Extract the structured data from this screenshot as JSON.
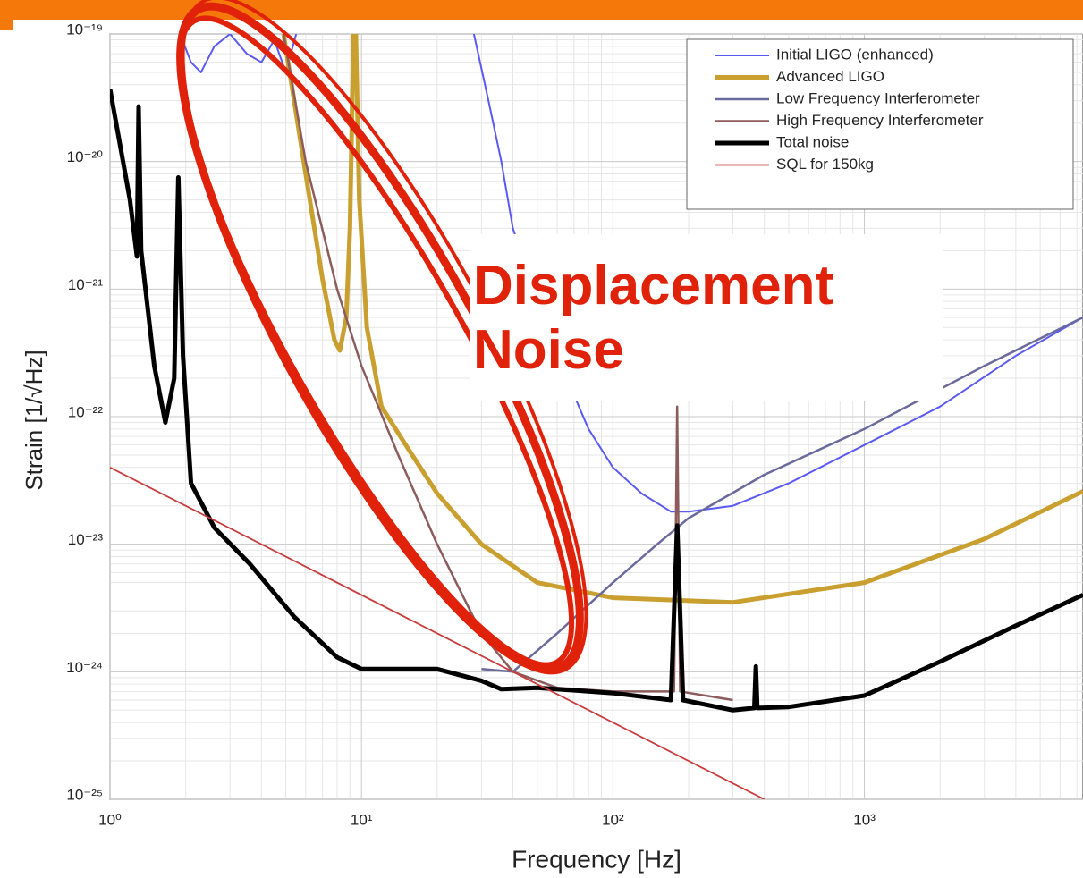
{
  "chart_data": {
    "type": "line",
    "x_label": "Frequency [Hz]",
    "y_label": "Strain [1/√Hz]",
    "annotation": "Displacement Noise",
    "log_x": true,
    "log_y": true,
    "grid": true,
    "legend": "upper right",
    "xlim": [
      1,
      7400
    ],
    "ylim": [
      1e-25,
      1e-19
    ],
    "xticks": [
      {
        "value": 1,
        "label": "10⁰"
      },
      {
        "value": 10,
        "label": "10¹"
      },
      {
        "value": 100,
        "label": "10²"
      },
      {
        "value": 1000,
        "label": "10³"
      }
    ],
    "yticks": [
      {
        "value": 1e-19,
        "label": "10⁻¹⁹"
      },
      {
        "value": 1e-20,
        "label": "10⁻²⁰"
      },
      {
        "value": 1e-21,
        "label": "10⁻²¹"
      },
      {
        "value": 1e-22,
        "label": "10⁻²²"
      },
      {
        "value": 1e-23,
        "label": "10⁻²³"
      },
      {
        "value": 1e-24,
        "label": "10⁻²⁴"
      },
      {
        "value": 1e-25,
        "label": "10⁻²⁵"
      }
    ],
    "series": [
      {
        "name": "Initial LIGO (enhanced)",
        "color": "#5a5af2",
        "x": [
          1.9,
          2.1,
          2.3,
          2.6,
          3,
          3.5,
          4,
          4.5,
          5,
          5.5,
          15,
          28,
          32,
          36,
          40,
          45,
          50,
          60,
          80,
          100,
          130,
          170,
          200,
          300,
          500,
          1000,
          2000,
          4000,
          7400
        ],
        "values": [
          1e-19,
          6e-20,
          5e-20,
          8e-20,
          1e-19,
          7e-20,
          6e-20,
          9e-20,
          5e-20,
          1e-19,
          null,
          1e-19,
          3e-20,
          1e-20,
          3e-21,
          1.5e-21,
          8e-22,
          3e-22,
          8e-23,
          4e-23,
          2.5e-23,
          1.8e-23,
          1.8e-23,
          2e-23,
          3e-23,
          6e-23,
          1.2e-22,
          3e-22,
          6e-22
        ]
      },
      {
        "name": "Advanced LIGO",
        "color": "#c9a030",
        "x": [
          4.9,
          6,
          7,
          7.8,
          8.2,
          8.7,
          9,
          9.3,
          9.5,
          9.8,
          10.5,
          12,
          15,
          20,
          30,
          50,
          100,
          300,
          1000,
          3000,
          7400
        ],
        "values": [
          1e-19,
          8e-21,
          1.2e-21,
          4e-22,
          3.3e-22,
          6e-22,
          3e-21,
          1e-19,
          1e-19,
          5e-21,
          5e-22,
          1.2e-22,
          6e-23,
          2.5e-23,
          1e-23,
          5e-24,
          3.8e-24,
          3.5e-24,
          5e-24,
          1.1e-23,
          2.6e-23
        ]
      },
      {
        "name": "Low Frequency Interferometer",
        "color": "#6a6a9c",
        "x": [
          30,
          40,
          60,
          100,
          150,
          200,
          400,
          1000,
          3000,
          7400
        ],
        "values": [
          1.05e-24,
          1e-24,
          2e-24,
          5e-24,
          1e-23,
          1.6e-23,
          3.5e-23,
          8e-23,
          2.5e-22,
          6e-22
        ]
      },
      {
        "name": "High Frequency Interferometer",
        "color": "#8c5c5c",
        "x": [
          4.9,
          6,
          8,
          10,
          14,
          20,
          30,
          40,
          60,
          100,
          175,
          180,
          185,
          300
        ],
        "values": [
          1e-19,
          1e-20,
          1e-21,
          2.5e-22,
          5e-23,
          1e-23,
          2e-24,
          1e-24,
          7.5e-25,
          7e-25,
          7e-25,
          1.2e-22,
          7e-25,
          6e-25
        ]
      },
      {
        "name": "Total noise",
        "color": "#000000",
        "x": [
          1,
          1.2,
          1.28,
          1.3,
          1.33,
          1.5,
          1.66,
          1.8,
          1.87,
          1.95,
          2.1,
          2.6,
          3.6,
          5.4,
          8,
          10,
          20,
          30,
          36,
          50,
          100,
          170,
          180,
          190,
          300,
          365,
          370,
          375,
          500,
          1000,
          2000,
          4000,
          7400
        ],
        "values": [
          3.7e-20,
          5e-21,
          1.8e-21,
          2.7e-20,
          2e-21,
          2.5e-22,
          9e-23,
          2e-22,
          7.5e-21,
          3e-22,
          3e-23,
          1.35e-23,
          7e-24,
          2.7e-24,
          1.3e-24,
          1.05e-24,
          1.05e-24,
          8.5e-25,
          7.3e-25,
          7.5e-25,
          6.8e-25,
          6e-25,
          1.4e-23,
          6e-25,
          5e-25,
          5.2e-25,
          1.1e-24,
          5.2e-25,
          5.3e-25,
          6.5e-25,
          1.2e-24,
          2.3e-24,
          4e-24
        ]
      },
      {
        "name": "SQL for 150kg",
        "color": "#c83c3c",
        "x": [
          1,
          400
        ],
        "values": [
          4e-23,
          1e-25
        ]
      }
    ]
  }
}
